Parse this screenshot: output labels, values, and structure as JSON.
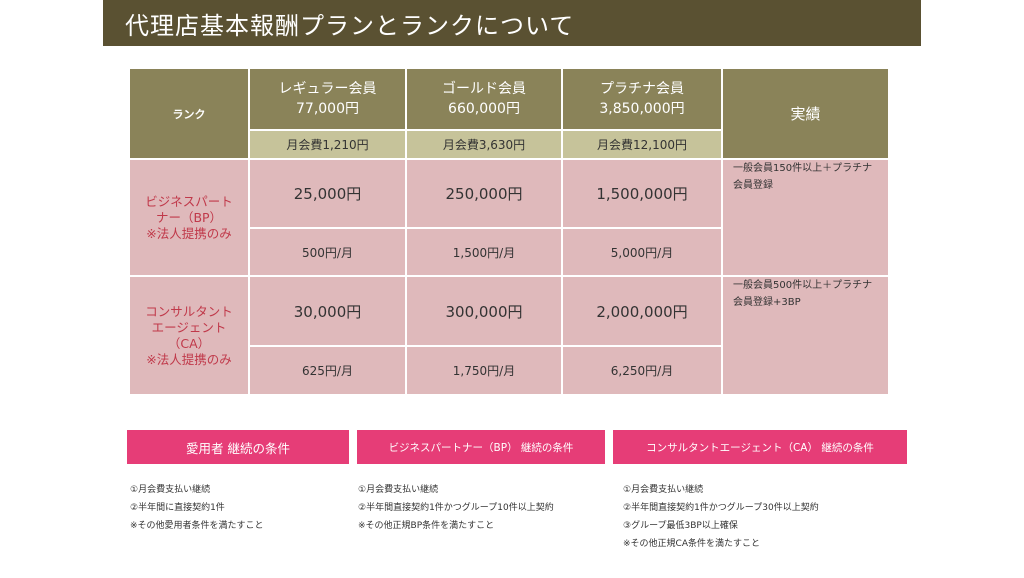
{
  "title": "代理店基本報酬プランとランクについて",
  "table": {
    "rank_header": "ランク",
    "jisseki_header": "実績",
    "columns": [
      {
        "name": "レギュラー会員",
        "price": "77,000円",
        "monthly": "月会費1,210円"
      },
      {
        "name": "ゴールド会員",
        "price": "660,000円",
        "monthly": "月会費3,630円"
      },
      {
        "name": "プラチナ会員",
        "price": "3,850,000円",
        "monthly": "月会費12,100円"
      }
    ],
    "rows": [
      {
        "name_line1": "ビジネスパート",
        "name_line2": "ナー（BP）",
        "name_line3": "",
        "name_note": "※法人提携のみ",
        "rewards": [
          "25,000円",
          "250,000円",
          "1,500,000円"
        ],
        "monthly": [
          "500円/月",
          "1,500円/月",
          "5,000円/月"
        ],
        "perf_line1": "一般会員150件以上＋プラチナ",
        "perf_line2": "会員登録"
      },
      {
        "name_line1": "コンサルタント",
        "name_line2": "エージェント",
        "name_line3": "（CA）",
        "name_note": "※法人提携のみ",
        "rewards": [
          "30,000円",
          "300,000円",
          "2,000,000円"
        ],
        "monthly": [
          "625円/月",
          "1,750円/月",
          "6,250円/月"
        ],
        "perf_line1": "一般会員500件以上＋プラチナ",
        "perf_line2": "会員登録+3BP"
      }
    ]
  },
  "conditions": [
    {
      "header": "愛用者 継続の条件",
      "items": [
        "①月会費支払い継続",
        "②半年間に直接契約1件",
        "※その他愛用者条件を満たすこと"
      ]
    },
    {
      "header": "ビジネスパートナー（BP） 継続の条件",
      "items": [
        "①月会費支払い継続",
        "②半年間直接契約1件かつグループ10件以上契約",
        "※その他正規BP条件を満たすこと"
      ]
    },
    {
      "header": "コンサルタントエージェント（CA） 継続の条件",
      "items": [
        "①月会費支払い継続",
        "②半年間直接契約1件かつグループ30件以上契約",
        "③グループ最低3BP以上確保",
        "※その他正規CA条件を満たすこと"
      ]
    }
  ]
}
